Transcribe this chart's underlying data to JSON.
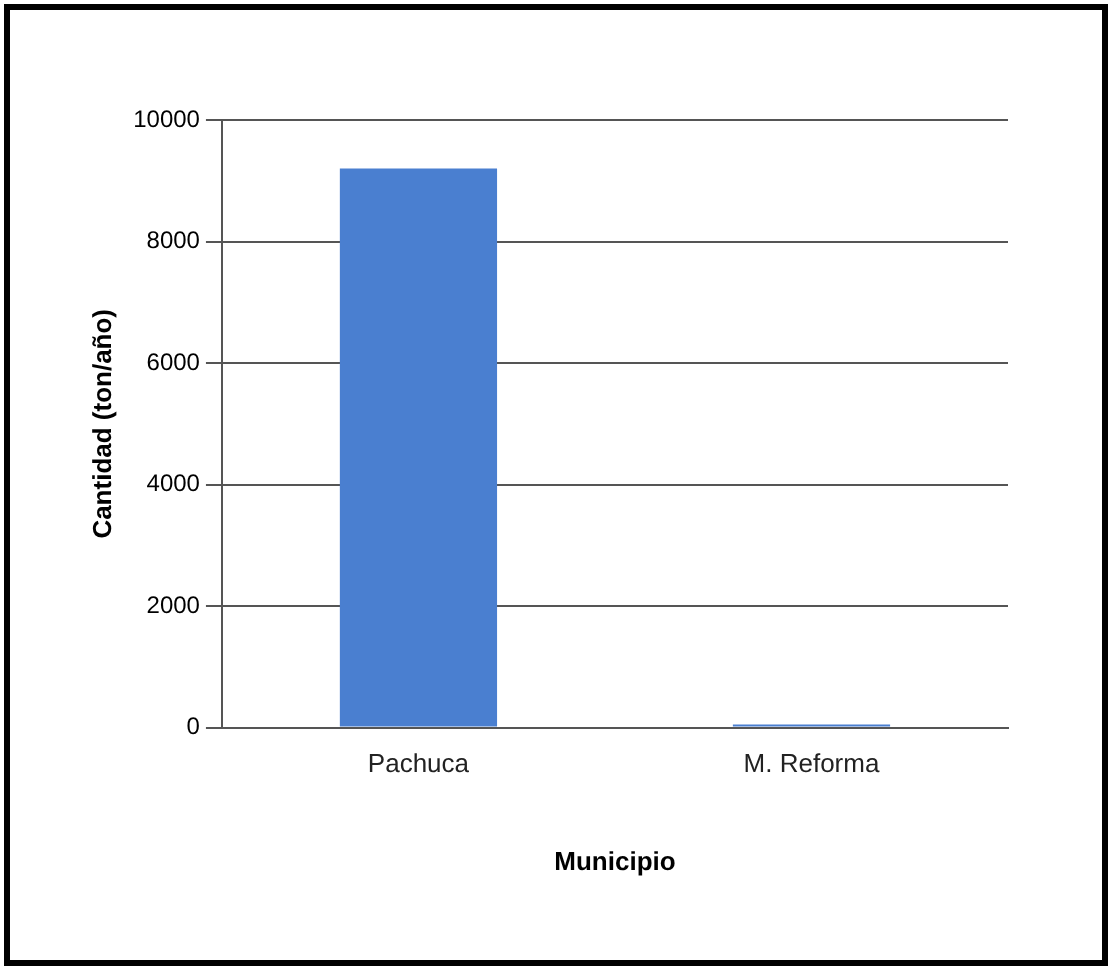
{
  "chart_data": {
    "type": "bar",
    "xlabel": "Municipio",
    "ylabel": "Cantidad (ton/año)",
    "categories": [
      "Pachuca",
      "M. Reforma"
    ],
    "values": [
      9200,
      50
    ],
    "color": "#4a7fd0",
    "ylim": [
      0,
      10000
    ],
    "yticks": [
      0,
      2000,
      4000,
      6000,
      8000,
      10000
    ],
    "grid": "y",
    "legend": false
  }
}
